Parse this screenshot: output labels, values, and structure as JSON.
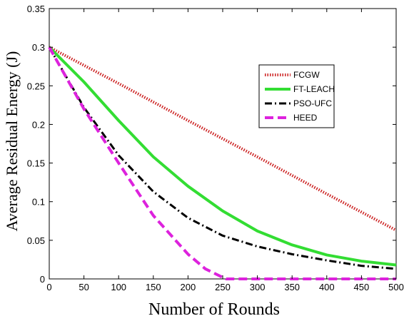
{
  "chart_data": {
    "type": "line",
    "title": "",
    "xlabel": "Number of Rounds",
    "ylabel": "Average Residual Energy (J)",
    "xlim": [
      0,
      500
    ],
    "ylim": [
      0,
      0.35
    ],
    "xticks": [
      0,
      50,
      100,
      150,
      200,
      250,
      300,
      350,
      400,
      450,
      500
    ],
    "xtick_labels": [
      "0",
      "50",
      "100",
      "150",
      "200",
      "250",
      "300",
      "350",
      "400",
      "450",
      "500"
    ],
    "yticks": [
      0,
      0.05,
      0.1,
      0.15,
      0.2,
      0.25,
      0.3,
      0.35
    ],
    "ytick_labels": [
      "0",
      "0.05",
      "0.1",
      "0.15",
      "0.2",
      "0.25",
      "0.3",
      "0.35"
    ],
    "grid": false,
    "legend_position": "upper-right",
    "series": [
      {
        "name": "FCGW",
        "color": "#cc2222",
        "style": "dotted",
        "x": [
          0,
          100,
          200,
          300,
          400,
          500
        ],
        "y": [
          0.3,
          0.253,
          0.205,
          0.158,
          0.11,
          0.063
        ]
      },
      {
        "name": "FT-LEACH",
        "color": "#33dd33",
        "style": "solid",
        "x": [
          0,
          50,
          100,
          150,
          200,
          250,
          300,
          350,
          400,
          450,
          500
        ],
        "y": [
          0.3,
          0.255,
          0.205,
          0.158,
          0.12,
          0.088,
          0.062,
          0.044,
          0.031,
          0.023,
          0.018
        ]
      },
      {
        "name": "PSO-UFC",
        "color": "#000000",
        "style": "dash-dot",
        "x": [
          0,
          50,
          100,
          150,
          200,
          250,
          300,
          350,
          400,
          450,
          500
        ],
        "y": [
          0.3,
          0.222,
          0.16,
          0.113,
          0.079,
          0.056,
          0.042,
          0.032,
          0.024,
          0.017,
          0.013
        ]
      },
      {
        "name": "HEED",
        "color": "#dd22dd",
        "style": "dashed",
        "x": [
          0,
          50,
          100,
          150,
          200,
          225,
          250,
          255,
          300,
          400,
          500
        ],
        "y": [
          0.3,
          0.22,
          0.15,
          0.082,
          0.032,
          0.013,
          0.002,
          0.0,
          0.0,
          0.0,
          0.0
        ]
      }
    ]
  }
}
